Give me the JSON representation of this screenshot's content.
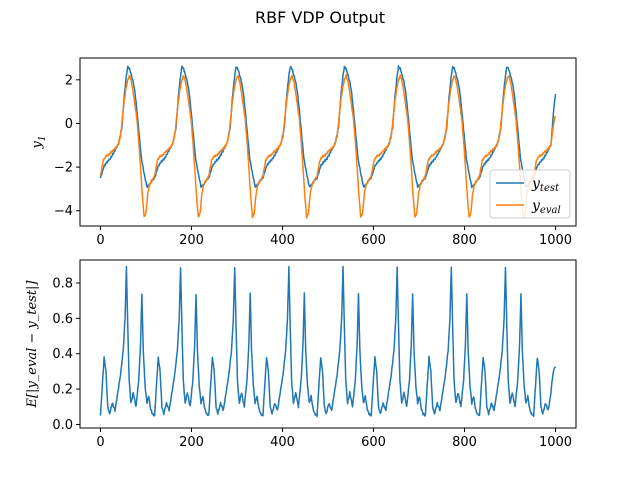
{
  "figure": {
    "title": "RBF VDP Output"
  },
  "chart_data": [
    {
      "type": "line",
      "ylabel": "y",
      "ylabel_sub": "1",
      "xlim": [
        -45,
        1045
      ],
      "ylim": [
        -4.7,
        3.0
      ],
      "xticks": [
        0,
        200,
        400,
        600,
        800,
        1000
      ],
      "yticks": [
        -4,
        -2,
        0,
        2
      ],
      "xtick_labels": [
        "0",
        "200",
        "400",
        "600",
        "800",
        "1000"
      ],
      "ytick_labels": [
        "−4",
        "−2",
        "0",
        "2"
      ],
      "legend_position": "lower-right",
      "period": 119,
      "x_range": [
        0,
        1000
      ],
      "series": [
        {
          "name_main": "y",
          "name_sub": "test",
          "color": "#1f77b4",
          "x_end": 1000,
          "end_value": 1.35,
          "cycle_shape": [
            [
              0,
              -2.5
            ],
            [
              8,
              -1.95
            ],
            [
              15,
              -1.75
            ],
            [
              22,
              -1.6
            ],
            [
              30,
              -1.3
            ],
            [
              40,
              -0.9
            ],
            [
              47,
              -0.2
            ],
            [
              52,
              1.2
            ],
            [
              57,
              2.2
            ],
            [
              60,
              2.6
            ],
            [
              64,
              2.5
            ],
            [
              68,
              2.2
            ],
            [
              72,
              1.9
            ],
            [
              76,
              1.4
            ],
            [
              80,
              0.6
            ],
            [
              85,
              -0.5
            ],
            [
              90,
              -1.6
            ],
            [
              96,
              -2.3
            ],
            [
              102,
              -2.9
            ],
            [
              108,
              -2.8
            ],
            [
              113,
              -2.6
            ],
            [
              119,
              -2.5
            ]
          ]
        },
        {
          "name_main": "y",
          "name_sub": "eval",
          "color": "#ff7f0e",
          "x_end": 1000,
          "end_value": 0.35,
          "cycle_shape": [
            [
              0,
              -2.4
            ],
            [
              6,
              -1.7
            ],
            [
              12,
              -1.5
            ],
            [
              18,
              -1.45
            ],
            [
              24,
              -1.3
            ],
            [
              30,
              -1.2
            ],
            [
              38,
              -1.0
            ],
            [
              44,
              -0.6
            ],
            [
              48,
              0.2
            ],
            [
              52,
              1.0
            ],
            [
              56,
              1.6
            ],
            [
              60,
              2.0
            ],
            [
              64,
              2.2
            ],
            [
              68,
              1.9
            ],
            [
              72,
              1.4
            ],
            [
              76,
              0.8
            ],
            [
              80,
              0.2
            ],
            [
              84,
              -0.8
            ],
            [
              88,
              -2.0
            ],
            [
              92,
              -3.3
            ],
            [
              96,
              -4.3
            ],
            [
              100,
              -4.1
            ],
            [
              104,
              -3.2
            ],
            [
              108,
              -2.8
            ],
            [
              114,
              -2.6
            ],
            [
              119,
              -2.4
            ]
          ]
        }
      ]
    },
    {
      "type": "line",
      "ylabel": "E[|y_eval − y_test|]",
      "xlim": [
        -45,
        1045
      ],
      "ylim": [
        -0.02,
        0.93
      ],
      "xticks": [
        0,
        200,
        400,
        600,
        800,
        1000
      ],
      "yticks": [
        0.0,
        0.2,
        0.4,
        0.6,
        0.8
      ],
      "xtick_labels": [
        "0",
        "200",
        "400",
        "600",
        "800",
        "1000"
      ],
      "ytick_labels": [
        "0.0",
        "0.2",
        "0.4",
        "0.6",
        "0.8"
      ],
      "period": 119,
      "x_range": [
        0,
        1000
      ],
      "series": [
        {
          "color": "#1f77b4",
          "x_end": 1000,
          "end_value": 0.32,
          "cycle_shape": [
            [
              0,
              0.05
            ],
            [
              4,
              0.22
            ],
            [
              8,
              0.38
            ],
            [
              12,
              0.3
            ],
            [
              16,
              0.1
            ],
            [
              20,
              0.06
            ],
            [
              26,
              0.12
            ],
            [
              32,
              0.08
            ],
            [
              38,
              0.18
            ],
            [
              44,
              0.28
            ],
            [
              50,
              0.42
            ],
            [
              54,
              0.6
            ],
            [
              57,
              0.89
            ],
            [
              60,
              0.55
            ],
            [
              63,
              0.25
            ],
            [
              67,
              0.12
            ],
            [
              72,
              0.18
            ],
            [
              78,
              0.1
            ],
            [
              84,
              0.25
            ],
            [
              88,
              0.45
            ],
            [
              91,
              0.74
            ],
            [
              94,
              0.42
            ],
            [
              98,
              0.22
            ],
            [
              102,
              0.12
            ],
            [
              106,
              0.16
            ],
            [
              110,
              0.09
            ],
            [
              114,
              0.06
            ],
            [
              119,
              0.05
            ]
          ]
        }
      ]
    }
  ]
}
